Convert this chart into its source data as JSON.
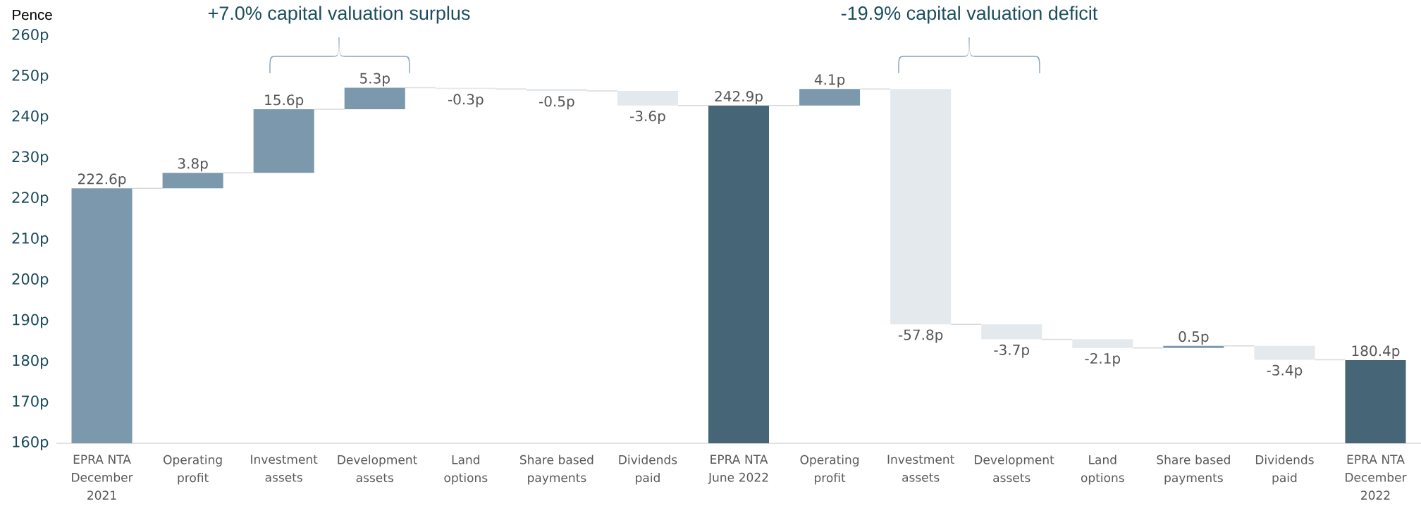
{
  "chart_data": {
    "type": "bar",
    "categories": [
      "EPRA NTA December 2021",
      "Operating profit",
      "Investment assets",
      "Development assets",
      "Land options",
      "Share based payments",
      "Dividends paid",
      "EPRA NTA June 2022",
      "Operating profit",
      "Investment assets",
      "Development assets",
      "Land options",
      "Share based payments",
      "Dividends paid",
      "EPRA NTA December 2022"
    ],
    "values": [
      222.6,
      3.8,
      15.6,
      5.3,
      -0.3,
      -0.5,
      -3.6,
      242.9,
      4.1,
      -57.8,
      -3.7,
      -2.1,
      0.5,
      -3.4,
      180.4
    ],
    "base": [
      null,
      222.6,
      226.4,
      242.0,
      247.3,
      247.0,
      246.5,
      null,
      242.9,
      247.0,
      189.2,
      185.5,
      183.4,
      183.9,
      null
    ],
    "colors": [
      "#7b98ad",
      "#7b98ad",
      "#7b98ad",
      "#7b98ad",
      "#e4e9ed",
      "#e4e9ed",
      "#e4e9ed",
      "#466577",
      "#7b98ad",
      "#e4e9ed",
      "#e4e9ed",
      "#e4e9ed",
      "#7b98ad",
      "#e4e9ed",
      "#466577"
    ],
    "value_labels": [
      "222.6p",
      "3.8p",
      "15.6p",
      "5.3p",
      "-0.3p",
      "-0.5p",
      "-3.6p",
      "242.9p",
      "4.1p",
      "-57.8p",
      "-3.7p",
      "-2.1p",
      "0.5p",
      "-3.4p",
      "180.4p"
    ],
    "ylabel": "Pence",
    "ylim": [
      160,
      260
    ],
    "yticks": [
      {
        "value": 160,
        "label": "160p"
      },
      {
        "value": 170,
        "label": "170p"
      },
      {
        "value": 180,
        "label": "180p"
      },
      {
        "value": 190,
        "label": "190p"
      },
      {
        "value": 200,
        "label": "200p"
      },
      {
        "value": 210,
        "label": "210p"
      },
      {
        "value": 220,
        "label": "220p"
      },
      {
        "value": 230,
        "label": "230p"
      },
      {
        "value": 240,
        "label": "240p"
      },
      {
        "value": 250,
        "label": "250p"
      },
      {
        "value": 260,
        "label": "260p"
      }
    ],
    "annotations": [
      "+7.0% capital valuation surplus",
      "-19.9% capital valuation deficit"
    ]
  }
}
